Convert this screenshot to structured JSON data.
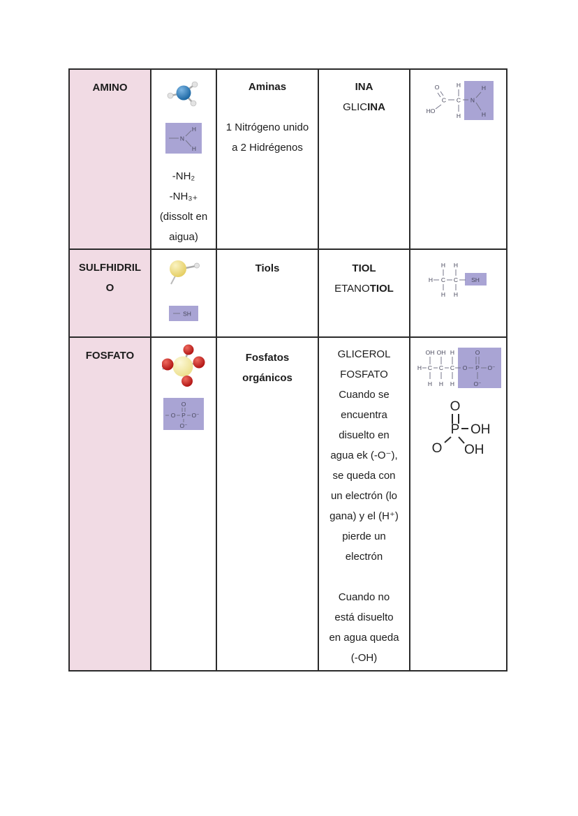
{
  "colors": {
    "group_column_bg": "#f1dbe4",
    "highlight_purple": "#a9a4d4",
    "table_border": "#2a2a2a",
    "nitrogen_ball": "#1e6fae",
    "sulfur_ball": "#eeda72",
    "phosphorus_ball": "#f2e9a6",
    "oxygen_ball": "#c31f1f",
    "hydrogen_ball": "#e3e3e3"
  },
  "rows": [
    {
      "group": "AMINO",
      "formula_lines": [
        "-NH₂",
        "-NH₃₊",
        "(dissolt en",
        "aigua)"
      ],
      "family": "Aminas",
      "family_note_lines": [
        "1 Nitrógeno unido",
        "a 2 Hidrégenos"
      ],
      "suffix": "INA",
      "example": {
        "prefix": "GLIC",
        "bold": "INA"
      }
    },
    {
      "group_lines": [
        "SULFHIDRIL",
        "O"
      ],
      "family": "Tiols",
      "suffix": "TIOL",
      "example": {
        "prefix": "ETANO",
        "bold": "TIOL"
      }
    },
    {
      "group": "FOSFATO",
      "family_lines": [
        "Fosfatos",
        "orgánicos"
      ],
      "notes_lines": [
        "GLICEROL",
        "FOSFATO",
        "Cuando se",
        "encuentra",
        "disuelto en",
        "agua ek (-O⁻),",
        "se queda con",
        "un electrón (lo",
        "gana) y el (H⁺)",
        "pierde un",
        "electrón",
        "",
        "Cuando no",
        "está disuelto",
        "en agua queda",
        "(-OH)"
      ]
    }
  ],
  "diagrams": {
    "amine_highlight": {
      "n": "N",
      "h_top": "H",
      "h_bottom": "H"
    },
    "thiol_highlight": {
      "sh": "SH"
    },
    "phosphate_highlight": {
      "o_top": "O",
      "o_left": "O",
      "p": "P",
      "o_right": "O⁻",
      "o_bottom": "O⁻"
    },
    "glycine": {
      "o": "O",
      "ho": "HO",
      "c1": "C",
      "c2": "C",
      "n": "N",
      "h_top": "H",
      "h_bottom": "H",
      "h_n_top": "H",
      "h_n_bottom": "H"
    },
    "ethanethiol": {
      "h_left": "H",
      "c1": "C",
      "c2": "C",
      "sh": "SH",
      "h_top1": "H",
      "h_top2": "H",
      "h_bot1": "H",
      "h_bot2": "H"
    },
    "glycerol_phosphate": {
      "top": [
        "OH",
        "OH",
        "H",
        "O"
      ],
      "mid": [
        "H",
        "C",
        "C",
        "C",
        "O",
        "P",
        "O⁻"
      ],
      "bottom": [
        "H",
        "H",
        "H",
        "O⁻"
      ]
    },
    "phosphoric_acid": {
      "o_top": "O",
      "p": "P",
      "oh_right": "OH",
      "oh_bottom": "OH",
      "o_left": "O"
    }
  }
}
